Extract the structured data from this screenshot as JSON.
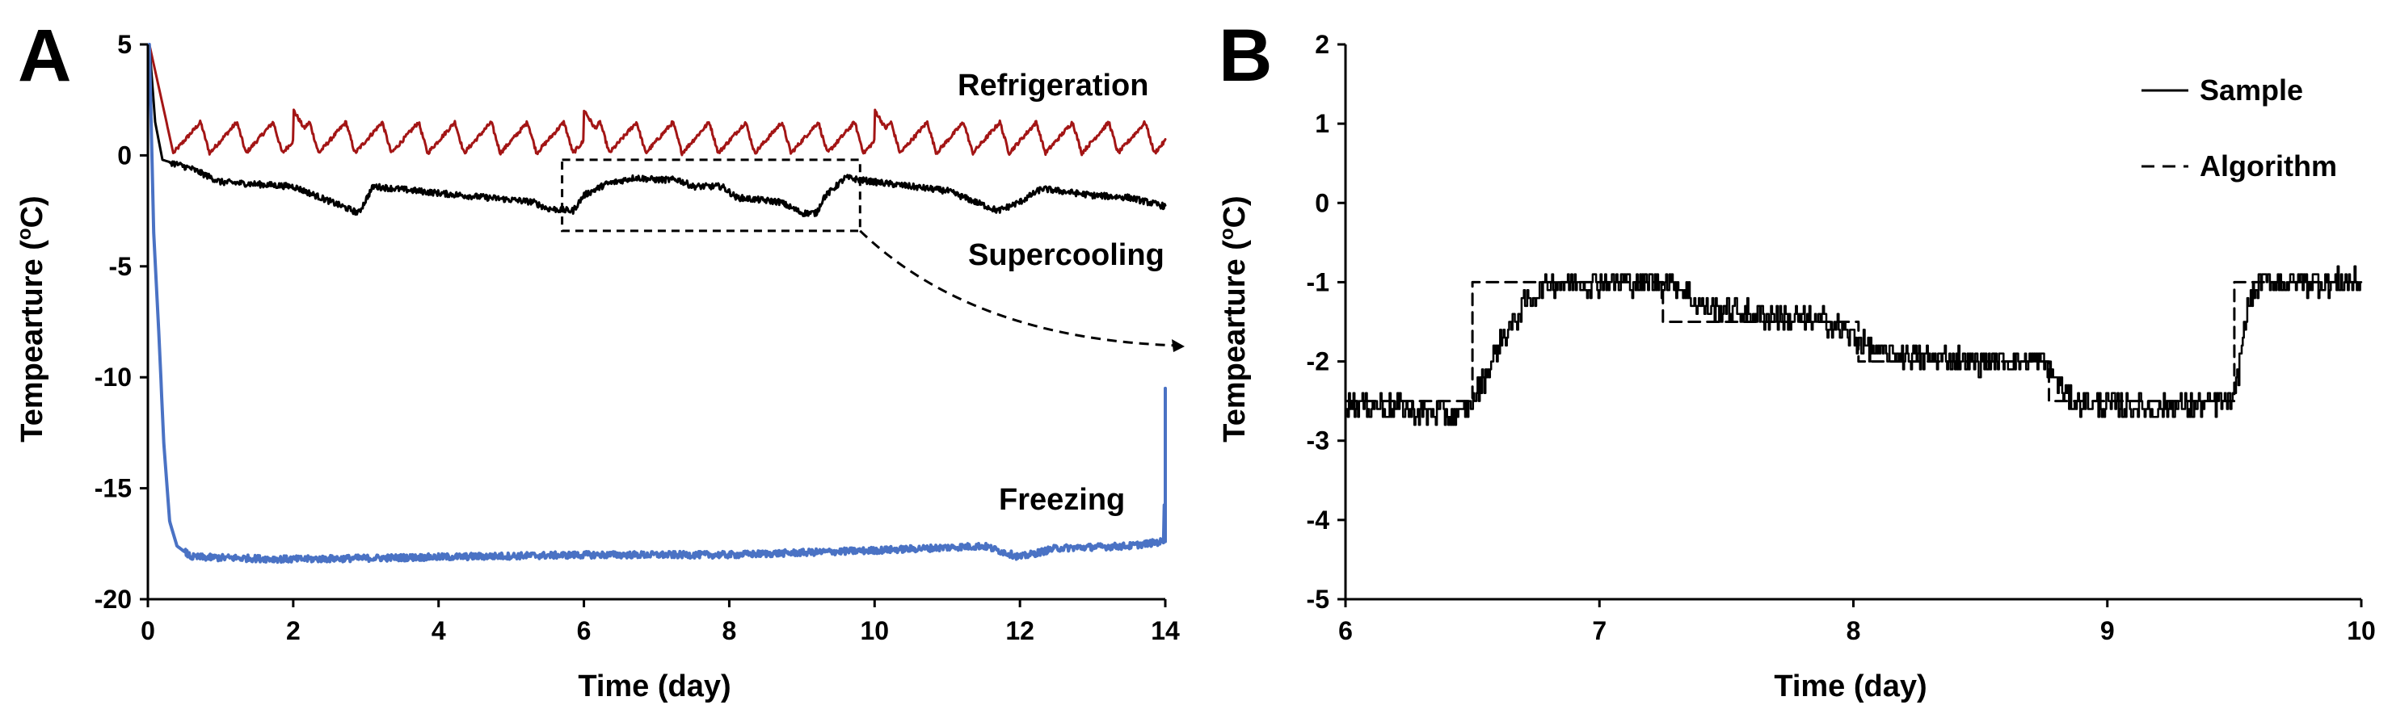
{
  "chart_data": [
    {
      "panel": "A",
      "type": "line",
      "title": "",
      "xlabel": "Time (day)",
      "ylabel": "Tempearture (°C)",
      "ylabel_parts": [
        "Tempearture (",
        "o",
        "C)"
      ],
      "xlim": [
        0,
        14
      ],
      "ylim": [
        -20,
        5
      ],
      "xticks": [
        "0",
        "2",
        "4",
        "6",
        "8",
        "10",
        "12",
        "14"
      ],
      "yticks": [
        "5",
        "0",
        "-5",
        "-10",
        "-15",
        "-20"
      ],
      "annotations": [
        "Refrigeration",
        "Supercooling",
        "Freezing"
      ],
      "series": [
        {
          "name": "Refrigeration",
          "color": "#a31515",
          "description_values": {
            "start_x": 0.02,
            "start_y": 5,
            "cycle_period_days": 0.5,
            "band_low": 0.1,
            "band_high": 1.5,
            "spikes_at_days": [
              2,
              6,
              10
            ]
          }
        },
        {
          "name": "Supercooling",
          "color": "#000000",
          "points": [
            [
              0.02,
              5
            ],
            [
              0.1,
              1.5
            ],
            [
              0.2,
              -0.2
            ],
            [
              0.4,
              -0.4
            ],
            [
              0.6,
              -0.6
            ],
            [
              1.0,
              -1.2
            ],
            [
              2.0,
              -1.4
            ],
            [
              2.9,
              -2.6
            ],
            [
              3.1,
              -1.4
            ],
            [
              4.0,
              -1.7
            ],
            [
              5.0,
              -2.0
            ],
            [
              5.3,
              -2.1
            ],
            [
              5.5,
              -2.4
            ],
            [
              5.85,
              -2.5
            ],
            [
              6.0,
              -1.8
            ],
            [
              6.3,
              -1.3
            ],
            [
              6.7,
              -1.0
            ],
            [
              7.0,
              -1.1
            ],
            [
              7.3,
              -1.1
            ],
            [
              7.5,
              -1.4
            ],
            [
              7.9,
              -1.4
            ],
            [
              8.1,
              -1.9
            ],
            [
              8.7,
              -2.1
            ],
            [
              9.0,
              -2.6
            ],
            [
              9.2,
              -2.6
            ],
            [
              9.3,
              -1.9
            ],
            [
              9.5,
              -1.3
            ],
            [
              9.6,
              -1.0
            ],
            [
              10.0,
              -1.2
            ],
            [
              11.0,
              -1.6
            ],
            [
              11.7,
              -2.5
            ],
            [
              12.0,
              -2.1
            ],
            [
              12.3,
              -1.5
            ],
            [
              13.0,
              -1.8
            ],
            [
              13.5,
              -1.9
            ],
            [
              14.0,
              -2.3
            ]
          ]
        },
        {
          "name": "Freezing",
          "color": "#4a72c4",
          "points": [
            [
              0.02,
              5
            ],
            [
              0.08,
              -3.5
            ],
            [
              0.15,
              -8
            ],
            [
              0.22,
              -13
            ],
            [
              0.3,
              -16.5
            ],
            [
              0.4,
              -17.6
            ],
            [
              0.6,
              -18.1
            ],
            [
              2.0,
              -18.2
            ],
            [
              4.0,
              -18.1
            ],
            [
              6.0,
              -18.0
            ],
            [
              8.0,
              -18.0
            ],
            [
              10.0,
              -17.8
            ],
            [
              11.5,
              -17.6
            ],
            [
              12.0,
              -18.1
            ],
            [
              12.5,
              -17.7
            ],
            [
              13.5,
              -17.6
            ],
            [
              13.98,
              -17.4
            ],
            [
              14.0,
              -10.5
            ]
          ]
        }
      ],
      "zoom_box": {
        "x": [
          5.7,
          9.8
        ],
        "y": [
          -3.4,
          -0.2
        ]
      }
    },
    {
      "panel": "B",
      "type": "line",
      "title": "",
      "xlabel": "Time (day)",
      "ylabel": "Tempearture (°C)",
      "ylabel_parts": [
        "Tempearture (",
        "o",
        "C)"
      ],
      "xlim": [
        6,
        10
      ],
      "ylim": [
        -5,
        2
      ],
      "xticks": [
        "6",
        "7",
        "8",
        "9",
        "10"
      ],
      "yticks": [
        "2",
        "1",
        "0",
        "-1",
        "-2",
        "-3",
        "-4",
        "-5"
      ],
      "legend": [
        "Sample",
        "Algorithm"
      ],
      "series": [
        {
          "name": "Sample",
          "color": "#000000",
          "style": "solid",
          "points": [
            [
              6.0,
              -2.5
            ],
            [
              6.45,
              -2.7
            ],
            [
              6.5,
              -2.5
            ],
            [
              6.55,
              -2.2
            ],
            [
              6.6,
              -1.8
            ],
            [
              6.7,
              -1.3
            ],
            [
              6.8,
              -1.0
            ],
            [
              7.0,
              -1.0
            ],
            [
              7.3,
              -1.0
            ],
            [
              7.4,
              -1.3
            ],
            [
              7.6,
              -1.4
            ],
            [
              7.9,
              -1.5
            ],
            [
              8.1,
              -1.9
            ],
            [
              8.5,
              -2.0
            ],
            [
              8.75,
              -2.0
            ],
            [
              8.85,
              -2.5
            ],
            [
              9.2,
              -2.6
            ],
            [
              9.5,
              -2.5
            ],
            [
              9.55,
              -1.3
            ],
            [
              9.6,
              -1.0
            ],
            [
              10.0,
              -1.0
            ]
          ]
        },
        {
          "name": "Algorithm",
          "color": "#000000",
          "style": "dashed",
          "steps": [
            [
              6.0,
              -2.5
            ],
            [
              6.5,
              -1.0
            ],
            [
              6.78,
              -1.0
            ],
            [
              7.25,
              -1.5
            ],
            [
              7.55,
              -1.5
            ],
            [
              8.02,
              -2.0
            ],
            [
              8.77,
              -2.5
            ],
            [
              9.5,
              -1.0
            ],
            [
              10.0,
              -1.0
            ]
          ]
        }
      ]
    }
  ]
}
